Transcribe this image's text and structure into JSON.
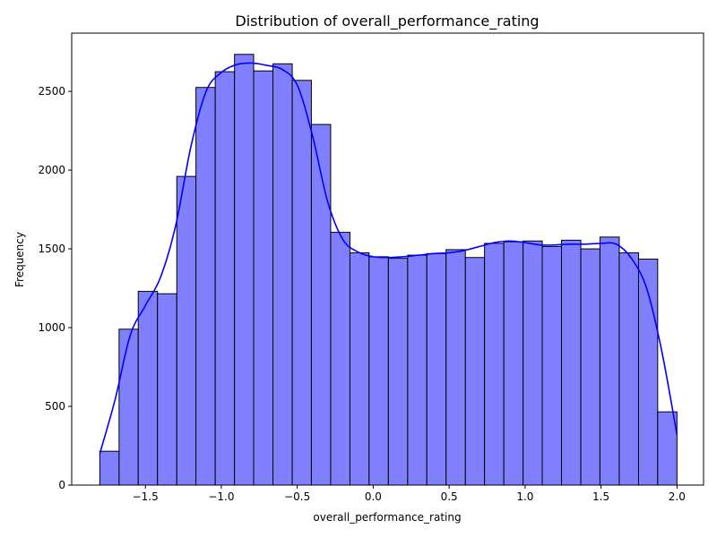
{
  "chart_data": {
    "type": "bar",
    "subtype": "histogram_with_kde",
    "title": "Distribution of overall_performance_rating",
    "xlabel": "overall_performance_rating",
    "ylabel": "Frequency",
    "xlim": [
      -1.985,
      2.175
    ],
    "ylim": [
      0,
      2870
    ],
    "xticks": [
      -1.5,
      -1.0,
      -0.5,
      0.0,
      0.5,
      1.0,
      1.5,
      2.0
    ],
    "xtick_labels": [
      "−1.5",
      "−1.0",
      "−0.5",
      "0.0",
      "0.5",
      "1.0",
      "1.5",
      "2.0"
    ],
    "yticks": [
      0,
      500,
      1000,
      1500,
      2000,
      2500
    ],
    "ytick_labels": [
      "0",
      "500",
      "1000",
      "1500",
      "2000",
      "2500"
    ],
    "bar_color": "#8080ff",
    "bar_edge_color": "#000000",
    "kde_color": "#0000ff",
    "bins": {
      "edges": [
        -1.8,
        -1.673,
        -1.547,
        -1.42,
        -1.293,
        -1.167,
        -1.04,
        -0.913,
        -0.787,
        -0.66,
        -0.533,
        -0.407,
        -0.28,
        -0.153,
        -0.027,
        0.1,
        0.227,
        0.353,
        0.48,
        0.607,
        0.733,
        0.86,
        0.987,
        1.113,
        1.24,
        1.367,
        1.493,
        1.62,
        1.747,
        1.873,
        2.0
      ],
      "counts": [
        215,
        990,
        1230,
        1215,
        1960,
        2525,
        2625,
        2735,
        2630,
        2675,
        2570,
        2290,
        1605,
        1475,
        1450,
        1440,
        1460,
        1470,
        1495,
        1445,
        1535,
        1545,
        1550,
        1515,
        1555,
        1500,
        1575,
        1475,
        1435,
        465
      ]
    },
    "kde": {
      "x": [
        -1.8,
        -1.7,
        -1.6,
        -1.5,
        -1.4,
        -1.3,
        -1.2,
        -1.1,
        -1.0,
        -0.9,
        -0.8,
        -0.7,
        -0.6,
        -0.5,
        -0.4,
        -0.3,
        -0.2,
        -0.1,
        0.0,
        0.1,
        0.2,
        0.3,
        0.4,
        0.5,
        0.6,
        0.7,
        0.8,
        0.9,
        1.0,
        1.1,
        1.2,
        1.3,
        1.4,
        1.5,
        1.6,
        1.7,
        1.8,
        1.9,
        2.0
      ],
      "y": [
        200,
        540,
        950,
        1140,
        1320,
        1650,
        2150,
        2500,
        2620,
        2670,
        2680,
        2665,
        2640,
        2540,
        2220,
        1800,
        1560,
        1480,
        1450,
        1445,
        1450,
        1460,
        1470,
        1475,
        1490,
        1515,
        1540,
        1550,
        1540,
        1525,
        1525,
        1530,
        1530,
        1535,
        1530,
        1440,
        1250,
        850,
        320
      ]
    }
  }
}
